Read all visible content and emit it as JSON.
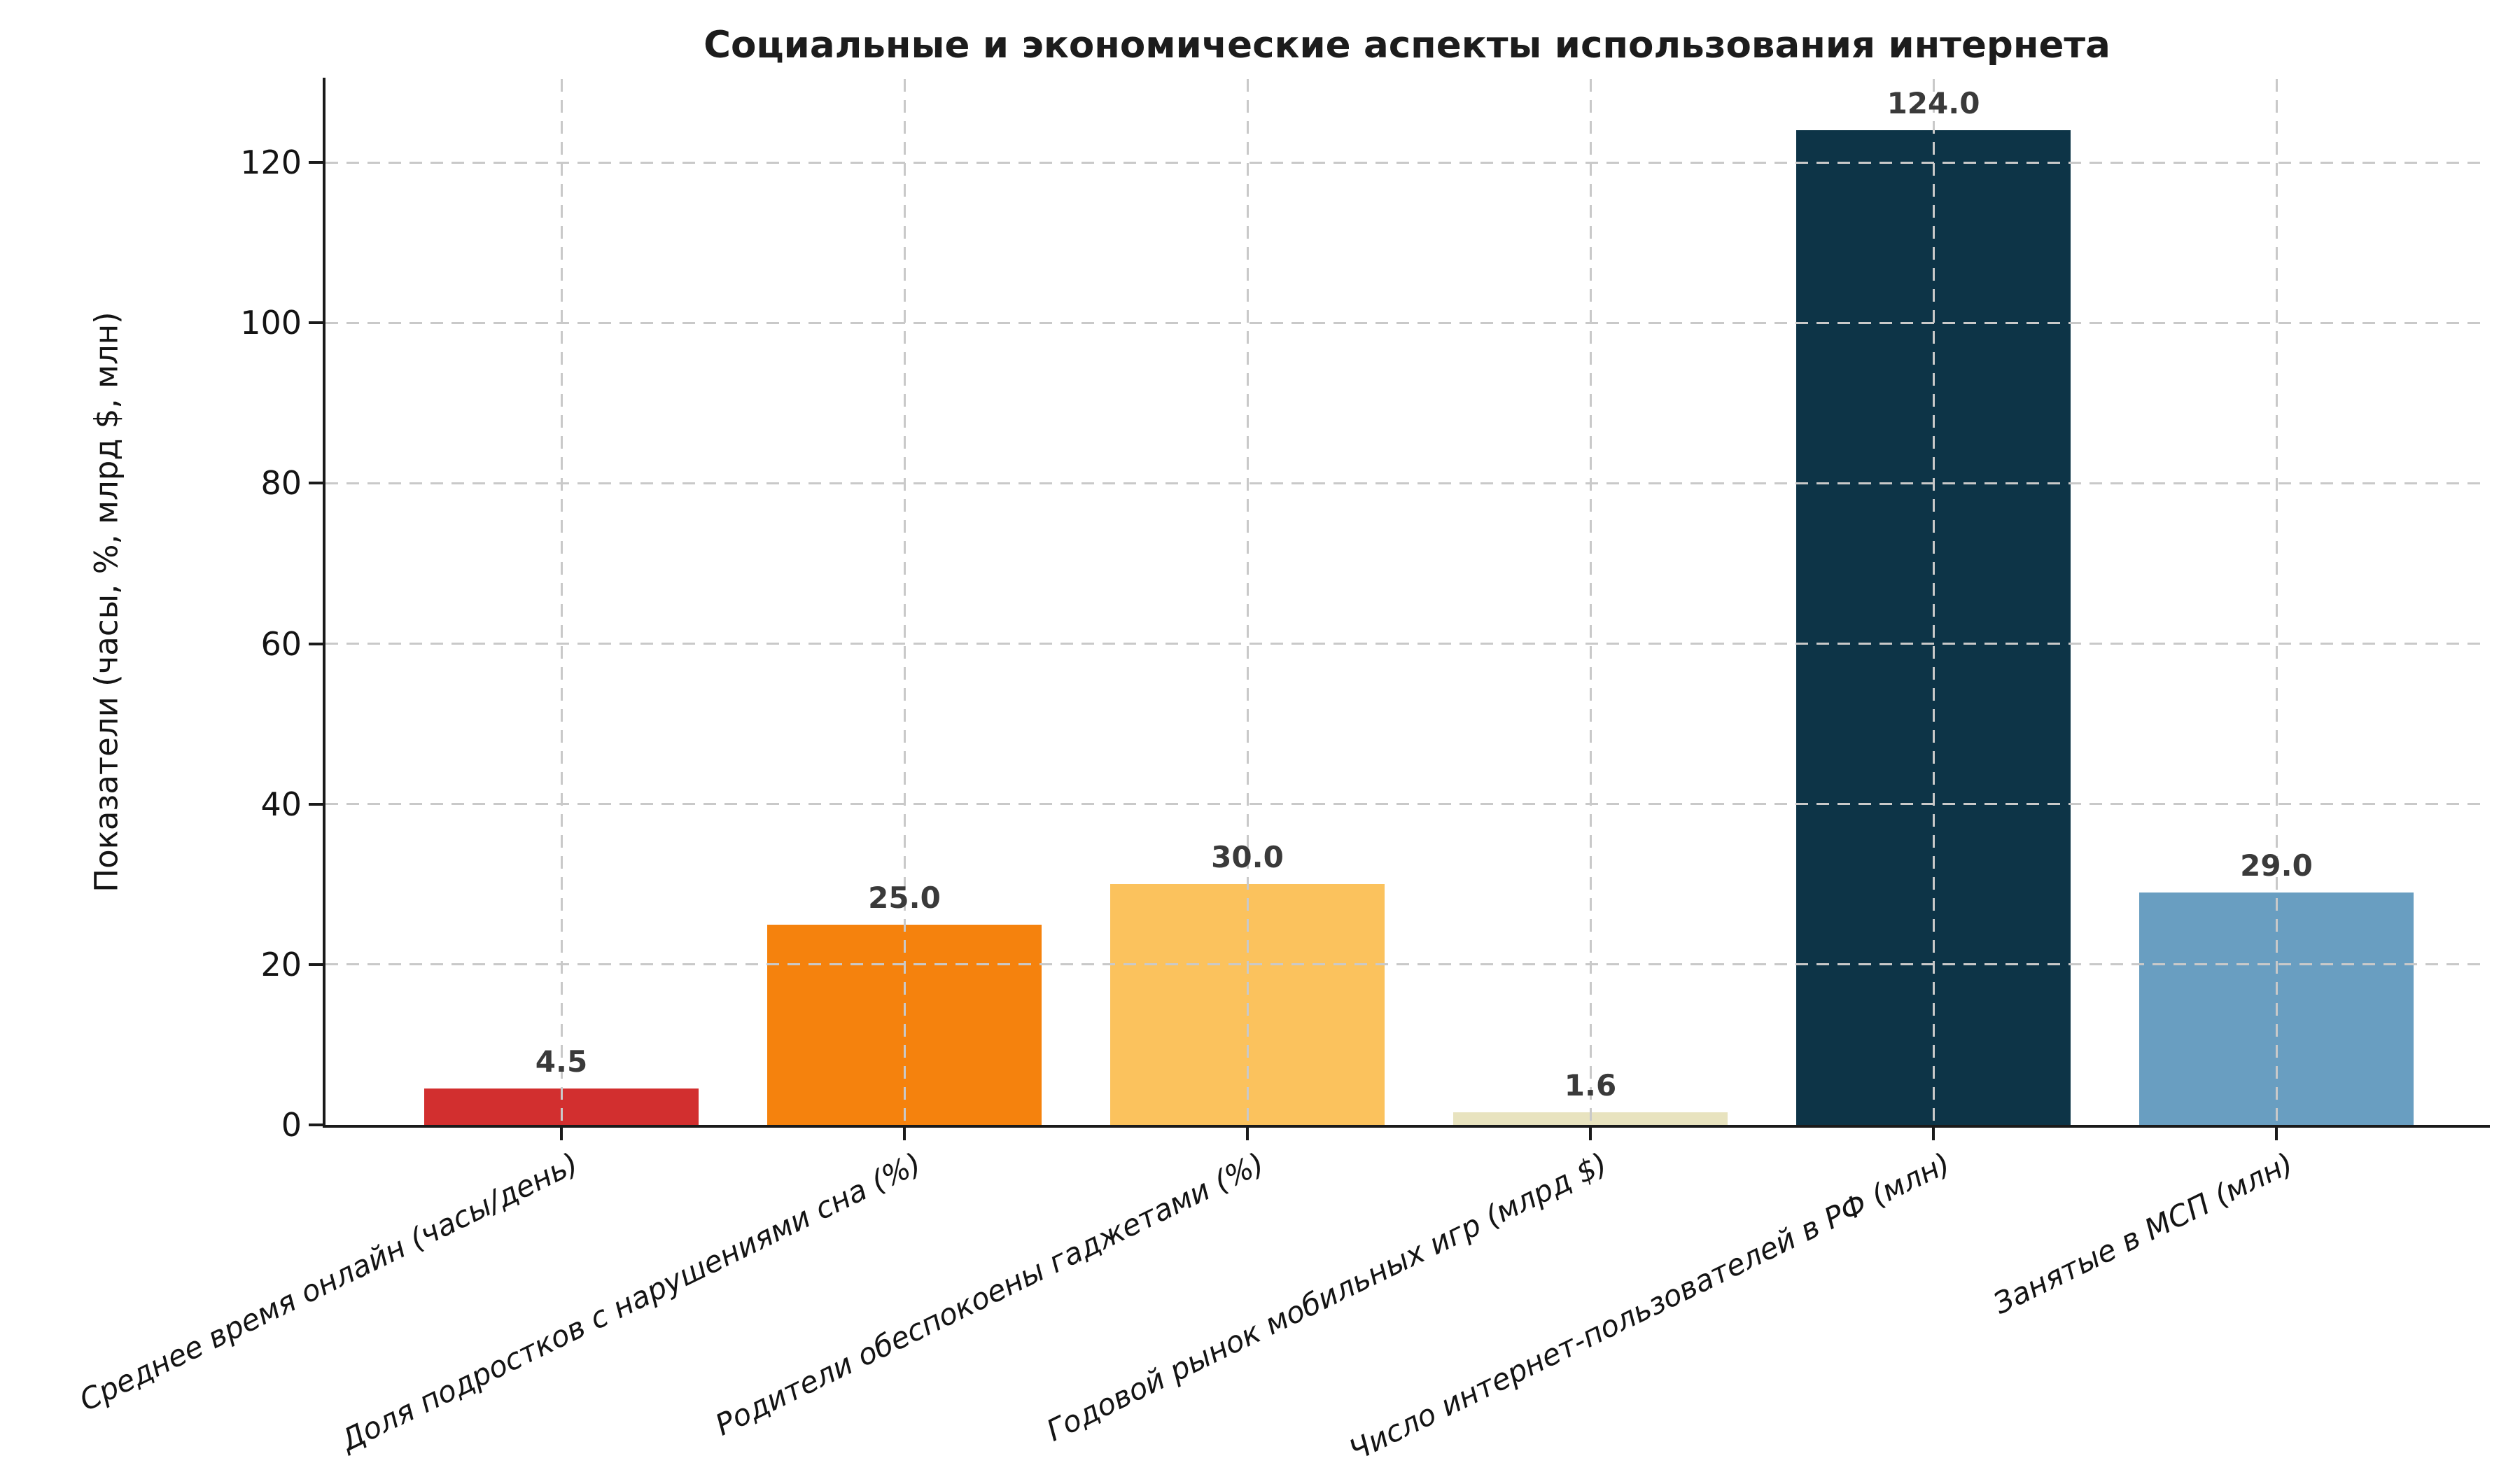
{
  "chart_data": {
    "type": "bar",
    "title": "Социальные и экономические аспекты использования интернета",
    "ylabel": "Показатели (часы, %, млрд $, млн)",
    "xlabel": "",
    "categories": [
      "Среднее время онлайн (часы/день)",
      "Доля подростков с нарушениями сна (%)",
      "Родители обеспокоены гаджетами (%)",
      "Годовой рынок мобильных игр (млрд $)",
      "Число интернет-пользователей в РФ (млн)",
      "Занятые в МСП (млн)"
    ],
    "values": [
      4.5,
      25.0,
      30.0,
      1.6,
      124.0,
      29.0
    ],
    "value_labels": [
      "4.5",
      "25.0",
      "30.0",
      "1.6",
      "124.0",
      "29.0"
    ],
    "bar_colors": [
      "#d22f2f",
      "#f5820d",
      "#fbc25d",
      "#e8e3bf",
      "#0d3447",
      "#699ec1"
    ],
    "yticks": [
      0,
      20,
      40,
      60,
      80,
      100,
      120
    ],
    "ylim": [
      0,
      130.4
    ],
    "grid": {
      "style": "dashed",
      "axes": "both",
      "color": "#c9c9c9",
      "on_top": true
    },
    "legend": null,
    "xtick_rotation_deg": 26,
    "xtick_style": "italic"
  },
  "colors": {
    "background": "#ffffff",
    "title_text": "#1c1c1c",
    "tick_text": "#141414",
    "value_label_text": "#3a3a3a",
    "axis_spine": "#1a1a1a",
    "grid_line": "#c9c9c9"
  }
}
